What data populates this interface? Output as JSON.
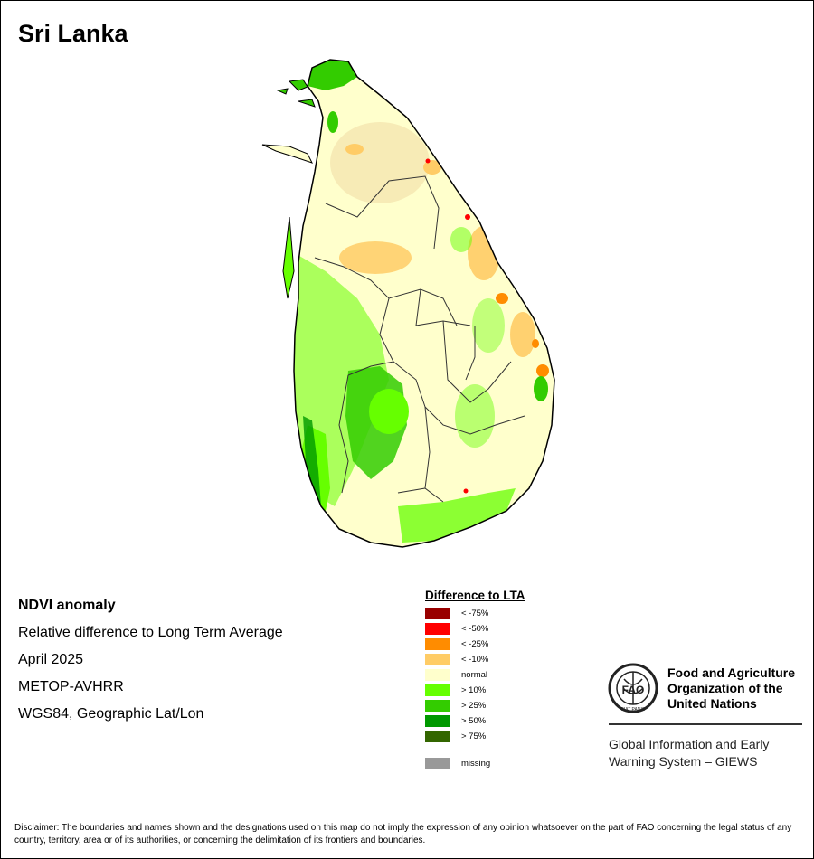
{
  "title": "Sri Lanka",
  "info": {
    "line1": "NDVI anomaly",
    "line2": "Relative difference to Long Term Average",
    "line3": "April 2025",
    "line4": "METOP-AVHRR",
    "line5": "WGS84, Geographic Lat/Lon"
  },
  "legend": {
    "title": "Difference to LTA",
    "items": [
      {
        "label": "< -75%",
        "color": "#990000"
      },
      {
        "label": "< -50%",
        "color": "#ff0000"
      },
      {
        "label": "< -25%",
        "color": "#ff8c00"
      },
      {
        "label": "< -10%",
        "color": "#ffcc66"
      },
      {
        "label": "normal",
        "color": "#ffffcc"
      },
      {
        "label": "> 10%",
        "color": "#66ff00"
      },
      {
        "label": "> 25%",
        "color": "#33cc00"
      },
      {
        "label": "> 50%",
        "color": "#009900"
      },
      {
        "label": "> 75%",
        "color": "#336600"
      }
    ],
    "missing": {
      "label": "missing",
      "color": "#999999"
    }
  },
  "fao": {
    "logo_text": "FAO",
    "logo_motto": "FIAT PANIS",
    "org_line1": "Food and Agriculture",
    "org_line2": "Organization of the",
    "org_line3": "United Nations",
    "giews_line1": "Global Information and Early",
    "giews_line2": "Warning System – GIEWS"
  },
  "disclaimer": "Disclaimer: The boundaries and names shown and the designations used on this map do not imply the expression of any opinion whatsoever on the part of FAO concerning the legal status of any country, territory, area or of its authorities, or concerning the delimitation of its frontiers and boundaries."
}
